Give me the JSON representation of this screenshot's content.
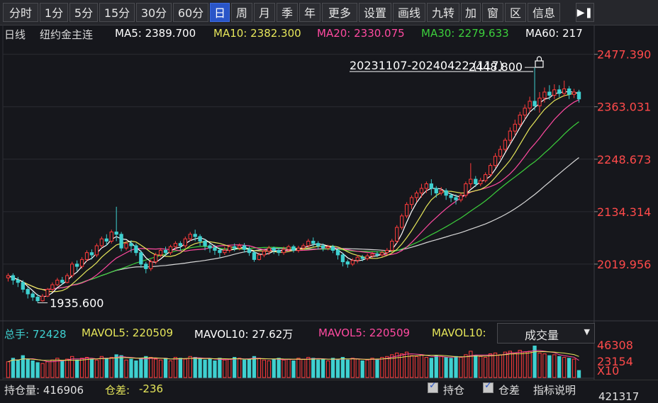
{
  "toolbar": {
    "items": [
      "分时",
      "1分",
      "5分",
      "15分",
      "30分",
      "60分",
      "日",
      "周",
      "月",
      "季",
      "年",
      "更多",
      "设置",
      "画线",
      "九转",
      "加",
      "窗",
      "区",
      "信息"
    ],
    "active": "日"
  },
  "legend": {
    "period": "日线",
    "symbol": "纽约金主连",
    "ma5": "MA5: 2389.700",
    "ma10": "MA10: 2382.300",
    "ma20": "MA20: 2330.075",
    "ma30": "MA30: 2279.633",
    "ma60": "MA60: 217"
  },
  "range_label": "20231107-20240422 (117)",
  "high_label": "2448.800",
  "low_label": "1935.600",
  "volume_header": {
    "total": "总手: 72428",
    "mavol5": "MAVOL5: 220509",
    "mavol10": "MAVOL10: 27.62万",
    "mavol5b": "MAVOL5: 220509",
    "mavol10b": "MAVOL10:"
  },
  "volume_selector": "成交量",
  "volume_axis": [
    "46308",
    "23154",
    "X10"
  ],
  "bottom": {
    "open_interest": "持仓量: 416906",
    "oi_diff_label": "仓差:",
    "oi_diff_value": "-236",
    "check1": "持仓",
    "check2": "仓差",
    "help": "指标说明",
    "cut": "421317"
  },
  "colors": {
    "up": "#ff3b3b",
    "down": "#3fd0d0",
    "ma5": "#ffffff",
    "ma10": "#e6e65a",
    "ma20": "#ff4aa0",
    "ma30": "#3ccf3c",
    "ma60": "#d8d8d8"
  },
  "chart_data": {
    "type": "candlestick",
    "y_ticks": [
      2477.39,
      2363.031,
      2248.673,
      2134.314,
      2019.956
    ],
    "ylim": [
      1904,
      2500
    ],
    "candles": [
      [
        1990,
        1995,
        1982,
        2000
      ],
      [
        1995,
        1985,
        1975,
        2000
      ],
      [
        1985,
        1980,
        1970,
        1992
      ],
      [
        1980,
        1965,
        1958,
        1985
      ],
      [
        1965,
        1955,
        1945,
        1970
      ],
      [
        1955,
        1948,
        1940,
        1960
      ],
      [
        1948,
        1940,
        1935.6,
        1955
      ],
      [
        1940,
        1950,
        1938,
        1955
      ],
      [
        1950,
        1965,
        1948,
        1968
      ],
      [
        1965,
        1975,
        1960,
        1980
      ],
      [
        1975,
        1985,
        1972,
        1990
      ],
      [
        1985,
        1980,
        1975,
        1992
      ],
      [
        1980,
        1995,
        1978,
        2000
      ],
      [
        1995,
        2020,
        1990,
        2025
      ],
      [
        2020,
        2015,
        2005,
        2028
      ],
      [
        2015,
        2030,
        2010,
        2035
      ],
      [
        2030,
        2045,
        2025,
        2050
      ],
      [
        2045,
        2040,
        2030,
        2052
      ],
      [
        2040,
        2060,
        2035,
        2065
      ],
      [
        2060,
        2075,
        2055,
        2080
      ],
      [
        2075,
        2070,
        2060,
        2085
      ],
      [
        2070,
        2090,
        2065,
        2095
      ],
      [
        2090,
        2085,
        2070,
        2145
      ],
      [
        2085,
        2055,
        2048,
        2090
      ],
      [
        2055,
        2065,
        2050,
        2070
      ],
      [
        2065,
        2060,
        2045,
        2072
      ],
      [
        2060,
        2045,
        2038,
        2065
      ],
      [
        2045,
        2020,
        2012,
        2050
      ],
      [
        2020,
        2010,
        2000,
        2025
      ],
      [
        2010,
        2025,
        2005,
        2030
      ],
      [
        2025,
        2040,
        2020,
        2045
      ],
      [
        2040,
        2050,
        2035,
        2055
      ],
      [
        2050,
        2045,
        2038,
        2058
      ],
      [
        2045,
        2058,
        2040,
        2062
      ],
      [
        2058,
        2065,
        2052,
        2070
      ],
      [
        2065,
        2060,
        2050,
        2070
      ],
      [
        2060,
        2075,
        2055,
        2080
      ],
      [
        2075,
        2085,
        2070,
        2090
      ],
      [
        2085,
        2080,
        2070,
        2095
      ],
      [
        2080,
        2070,
        2060,
        2085
      ],
      [
        2070,
        2060,
        2050,
        2075
      ],
      [
        2060,
        2055,
        2045,
        2065
      ],
      [
        2055,
        2050,
        2040,
        2062
      ],
      [
        2050,
        2045,
        2035,
        2055
      ],
      [
        2045,
        2050,
        2040,
        2058
      ],
      [
        2050,
        2058,
        2045,
        2062
      ],
      [
        2058,
        2055,
        2048,
        2065
      ],
      [
        2055,
        2060,
        2050,
        2065
      ],
      [
        2060,
        2052,
        2045,
        2066
      ],
      [
        2052,
        2045,
        2038,
        2058
      ],
      [
        2045,
        2030,
        2025,
        2050
      ],
      [
        2030,
        2040,
        2028,
        2045
      ],
      [
        2040,
        2048,
        2035,
        2052
      ],
      [
        2048,
        2055,
        2040,
        2060
      ],
      [
        2055,
        2050,
        2042,
        2058
      ],
      [
        2050,
        2045,
        2038,
        2055
      ],
      [
        2045,
        2052,
        2040,
        2058
      ],
      [
        2052,
        2058,
        2048,
        2062
      ],
      [
        2058,
        2050,
        2045,
        2062
      ],
      [
        2050,
        2055,
        2045,
        2060
      ],
      [
        2055,
        2060,
        2050,
        2065
      ],
      [
        2060,
        2070,
        2055,
        2075
      ],
      [
        2070,
        2065,
        2058,
        2078
      ],
      [
        2065,
        2060,
        2052,
        2070
      ],
      [
        2060,
        2055,
        2048,
        2065
      ],
      [
        2055,
        2058,
        2050,
        2062
      ],
      [
        2058,
        2050,
        2044,
        2062
      ],
      [
        2050,
        2040,
        2030,
        2055
      ],
      [
        2040,
        2025,
        2015,
        2045
      ],
      [
        2025,
        2020,
        2012,
        2030
      ],
      [
        2020,
        2028,
        2016,
        2033
      ],
      [
        2028,
        2035,
        2022,
        2040
      ],
      [
        2035,
        2032,
        2026,
        2040
      ],
      [
        2032,
        2038,
        2028,
        2043
      ],
      [
        2038,
        2042,
        2033,
        2047
      ],
      [
        2042,
        2040,
        2035,
        2048
      ],
      [
        2040,
        2045,
        2036,
        2050
      ],
      [
        2045,
        2050,
        2040,
        2055
      ],
      [
        2050,
        2070,
        2045,
        2075
      ],
      [
        2070,
        2100,
        2065,
        2105
      ],
      [
        2100,
        2125,
        2095,
        2130
      ],
      [
        2125,
        2150,
        2120,
        2155
      ],
      [
        2150,
        2165,
        2140,
        2170
      ],
      [
        2165,
        2175,
        2155,
        2180
      ],
      [
        2175,
        2185,
        2165,
        2195
      ],
      [
        2185,
        2195,
        2175,
        2200
      ],
      [
        2195,
        2185,
        2170,
        2205
      ],
      [
        2185,
        2175,
        2165,
        2190
      ],
      [
        2175,
        2180,
        2170,
        2188
      ],
      [
        2180,
        2170,
        2160,
        2185
      ],
      [
        2170,
        2165,
        2155,
        2175
      ],
      [
        2165,
        2160,
        2150,
        2172
      ],
      [
        2160,
        2170,
        2155,
        2175
      ],
      [
        2170,
        2195,
        2165,
        2200
      ],
      [
        2195,
        2205,
        2185,
        2240
      ],
      [
        2205,
        2195,
        2188,
        2212
      ],
      [
        2195,
        2202,
        2190,
        2208
      ],
      [
        2202,
        2215,
        2198,
        2220
      ],
      [
        2215,
        2235,
        2210,
        2240
      ],
      [
        2235,
        2255,
        2230,
        2262
      ],
      [
        2255,
        2270,
        2248,
        2278
      ],
      [
        2270,
        2290,
        2265,
        2295
      ],
      [
        2290,
        2310,
        2282,
        2318
      ],
      [
        2310,
        2325,
        2300,
        2335
      ],
      [
        2325,
        2345,
        2318,
        2352
      ],
      [
        2345,
        2360,
        2335,
        2368
      ],
      [
        2360,
        2375,
        2350,
        2385
      ],
      [
        2375,
        2365,
        2355,
        2448.8
      ],
      [
        2365,
        2382,
        2350,
        2395
      ],
      [
        2382,
        2395,
        2372,
        2405
      ],
      [
        2395,
        2388,
        2378,
        2410
      ],
      [
        2388,
        2400,
        2380,
        2412
      ],
      [
        2400,
        2392,
        2384,
        2410
      ],
      [
        2392,
        2402,
        2385,
        2420
      ],
      [
        2402,
        2390,
        2380,
        2408
      ],
      [
        2390,
        2395,
        2382,
        2402
      ],
      [
        2395,
        2380,
        2372,
        2400
      ]
    ],
    "volumes": [
      18,
      22,
      20,
      25,
      21,
      19,
      17,
      16,
      18,
      20,
      22,
      19,
      21,
      24,
      20,
      22,
      23,
      21,
      20,
      24,
      22,
      23,
      26,
      25,
      20,
      21,
      19,
      22,
      24,
      23,
      21,
      20,
      22,
      19,
      23,
      22,
      21,
      24,
      23,
      22,
      20,
      21,
      19,
      22,
      20,
      21,
      23,
      22,
      20,
      21,
      24,
      22,
      20,
      19,
      21,
      22,
      20,
      21,
      19,
      22,
      21,
      23,
      22,
      20,
      21,
      19,
      22,
      21,
      23,
      20,
      22,
      21,
      19,
      20,
      22,
      21,
      23,
      24,
      26,
      28,
      27,
      29,
      25,
      24,
      26,
      23,
      22,
      25,
      24,
      23,
      22,
      24,
      23,
      26,
      30,
      25,
      24,
      23,
      27,
      28,
      26,
      29,
      30,
      28,
      31,
      29,
      30,
      36,
      28,
      27,
      25,
      26,
      24,
      23,
      22,
      21,
      8
    ]
  }
}
